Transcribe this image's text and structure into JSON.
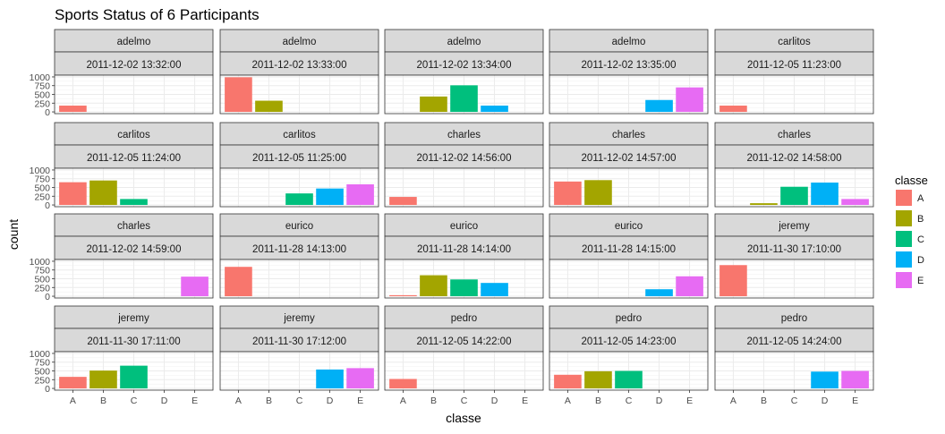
{
  "chart_data": {
    "type": "bar",
    "title": "Sports Status of 6 Participants",
    "xlabel": "classe",
    "ylabel": "count",
    "categories": [
      "A",
      "B",
      "C",
      "D",
      "E"
    ],
    "yticks": [
      0,
      250,
      500,
      750,
      1000
    ],
    "ylim": [
      0,
      1000
    ],
    "grid": true,
    "legend": {
      "title": "classe",
      "position": "right",
      "entries": [
        "A",
        "B",
        "C",
        "D",
        "E"
      ]
    },
    "colors": {
      "A": "#F8766D",
      "B": "#A3A500",
      "C": "#00BF7D",
      "D": "#00B0F6",
      "E": "#E76BF3"
    },
    "facets": [
      {
        "user": "adelmo",
        "time": "2011-12-02 13:32:00",
        "values": [
          180,
          0,
          0,
          0,
          0
        ]
      },
      {
        "user": "adelmo",
        "time": "2011-12-02 13:33:00",
        "values": [
          990,
          320,
          0,
          0,
          0
        ]
      },
      {
        "user": "adelmo",
        "time": "2011-12-02 13:34:00",
        "values": [
          0,
          440,
          760,
          180,
          0
        ]
      },
      {
        "user": "adelmo",
        "time": "2011-12-02 13:35:00",
        "values": [
          0,
          0,
          0,
          340,
          700
        ]
      },
      {
        "user": "carlitos",
        "time": "2011-12-05 11:23:00",
        "values": [
          180,
          0,
          0,
          0,
          0
        ]
      },
      {
        "user": "carlitos",
        "time": "2011-12-05 11:24:00",
        "values": [
          650,
          700,
          170,
          0,
          0
        ]
      },
      {
        "user": "carlitos",
        "time": "2011-12-05 11:25:00",
        "values": [
          0,
          0,
          330,
          470,
          590
        ]
      },
      {
        "user": "charles",
        "time": "2011-12-02 14:56:00",
        "values": [
          230,
          0,
          0,
          0,
          0
        ]
      },
      {
        "user": "charles",
        "time": "2011-12-02 14:57:00",
        "values": [
          670,
          710,
          0,
          0,
          0
        ]
      },
      {
        "user": "charles",
        "time": "2011-12-02 14:58:00",
        "values": [
          0,
          50,
          520,
          640,
          170
        ]
      },
      {
        "user": "charles",
        "time": "2011-12-02 14:59:00",
        "values": [
          0,
          0,
          0,
          0,
          560
        ]
      },
      {
        "user": "eurico",
        "time": "2011-11-28 14:13:00",
        "values": [
          840,
          0,
          0,
          0,
          0
        ]
      },
      {
        "user": "eurico",
        "time": "2011-11-28 14:14:00",
        "values": [
          30,
          600,
          480,
          380,
          0
        ]
      },
      {
        "user": "eurico",
        "time": "2011-11-28 14:15:00",
        "values": [
          0,
          0,
          0,
          200,
          570
        ]
      },
      {
        "user": "jeremy",
        "time": "2011-11-30 17:10:00",
        "values": [
          890,
          0,
          0,
          0,
          0
        ]
      },
      {
        "user": "jeremy",
        "time": "2011-11-30 17:11:00",
        "values": [
          330,
          510,
          650,
          0,
          0
        ]
      },
      {
        "user": "jeremy",
        "time": "2011-11-30 17:12:00",
        "values": [
          0,
          0,
          0,
          540,
          580
        ]
      },
      {
        "user": "pedro",
        "time": "2011-12-05 14:22:00",
        "values": [
          270,
          0,
          0,
          0,
          0
        ]
      },
      {
        "user": "pedro",
        "time": "2011-12-05 14:23:00",
        "values": [
          390,
          490,
          500,
          0,
          0
        ]
      },
      {
        "user": "pedro",
        "time": "2011-12-05 14:24:00",
        "values": [
          0,
          0,
          0,
          480,
          500
        ]
      }
    ]
  }
}
